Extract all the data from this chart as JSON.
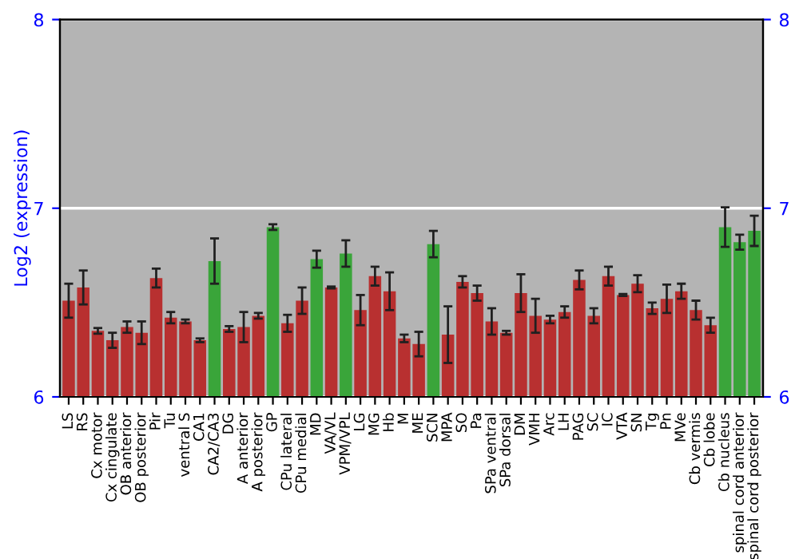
{
  "chart_data": {
    "type": "bar",
    "ylabel": "Log2 (expression)",
    "categories": [
      "LS",
      "RS",
      "Cx motor",
      "Cx cingulate",
      "OB anterior",
      "OB posterior",
      "Pir",
      "Tu",
      "ventral S",
      "CA1",
      "CA2/CA3",
      "DG",
      "A anterior",
      "A posterior",
      "GP",
      "CPu lateral",
      "CPu medial",
      "MD",
      "VA/VL",
      "VPM/VPL",
      "LG",
      "MG",
      "Hb",
      "M",
      "ME",
      "SCN",
      "MPA",
      "SO",
      "Pa",
      "SPa ventral",
      "SPa dorsal",
      "DM",
      "VMH",
      "Arc",
      "LH",
      "PAG",
      "SC",
      "IC",
      "VTA",
      "SN",
      "Tg",
      "Pn",
      "MVe",
      "Cb vermis",
      "Cb lobe",
      "Cb nucleus",
      "spinal cord anterior",
      "spinal cord posterior"
    ],
    "values": [
      6.51,
      6.58,
      6.35,
      6.3,
      6.37,
      6.34,
      6.63,
      6.42,
      6.4,
      6.3,
      6.72,
      6.36,
      6.37,
      6.43,
      6.9,
      6.39,
      6.51,
      6.73,
      6.58,
      6.76,
      6.46,
      6.64,
      6.56,
      6.31,
      6.28,
      6.81,
      6.33,
      6.61,
      6.55,
      6.4,
      6.34,
      6.55,
      6.43,
      6.41,
      6.45,
      6.62,
      6.43,
      6.64,
      6.54,
      6.6,
      6.47,
      6.52,
      6.56,
      6.46,
      6.38,
      6.9,
      6.82,
      6.88
    ],
    "errors": [
      0.09,
      0.09,
      0.015,
      0.04,
      0.03,
      0.06,
      0.05,
      0.03,
      0.01,
      0.01,
      0.12,
      0.015,
      0.08,
      0.015,
      0.015,
      0.045,
      0.07,
      0.045,
      0.005,
      0.07,
      0.08,
      0.05,
      0.1,
      0.02,
      0.065,
      0.07,
      0.15,
      0.03,
      0.04,
      0.07,
      0.01,
      0.1,
      0.09,
      0.02,
      0.03,
      0.05,
      0.04,
      0.05,
      0.005,
      0.045,
      0.03,
      0.075,
      0.04,
      0.05,
      0.04,
      0.105,
      0.04,
      0.08
    ],
    "colors": [
      "#b83030",
      "#b83030",
      "#b83030",
      "#b83030",
      "#b83030",
      "#b83030",
      "#b83030",
      "#b83030",
      "#b83030",
      "#b83030",
      "#3aa53a",
      "#b83030",
      "#b83030",
      "#b83030",
      "#3aa53a",
      "#b83030",
      "#b83030",
      "#3aa53a",
      "#b83030",
      "#3aa53a",
      "#b83030",
      "#b83030",
      "#b83030",
      "#b83030",
      "#b83030",
      "#3aa53a",
      "#b83030",
      "#b83030",
      "#b83030",
      "#b83030",
      "#b83030",
      "#b83030",
      "#b83030",
      "#b83030",
      "#b83030",
      "#b83030",
      "#b83030",
      "#b83030",
      "#b83030",
      "#b83030",
      "#b83030",
      "#b83030",
      "#b83030",
      "#b83030",
      "#b83030",
      "#3aa53a",
      "#3aa53a",
      "#3aa53a"
    ],
    "ylim": [
      6,
      8
    ],
    "yticks": [
      6,
      7,
      8
    ],
    "y2lim": [
      6,
      8
    ],
    "y2ticks": [
      6,
      7,
      8
    ],
    "grid": "y"
  }
}
